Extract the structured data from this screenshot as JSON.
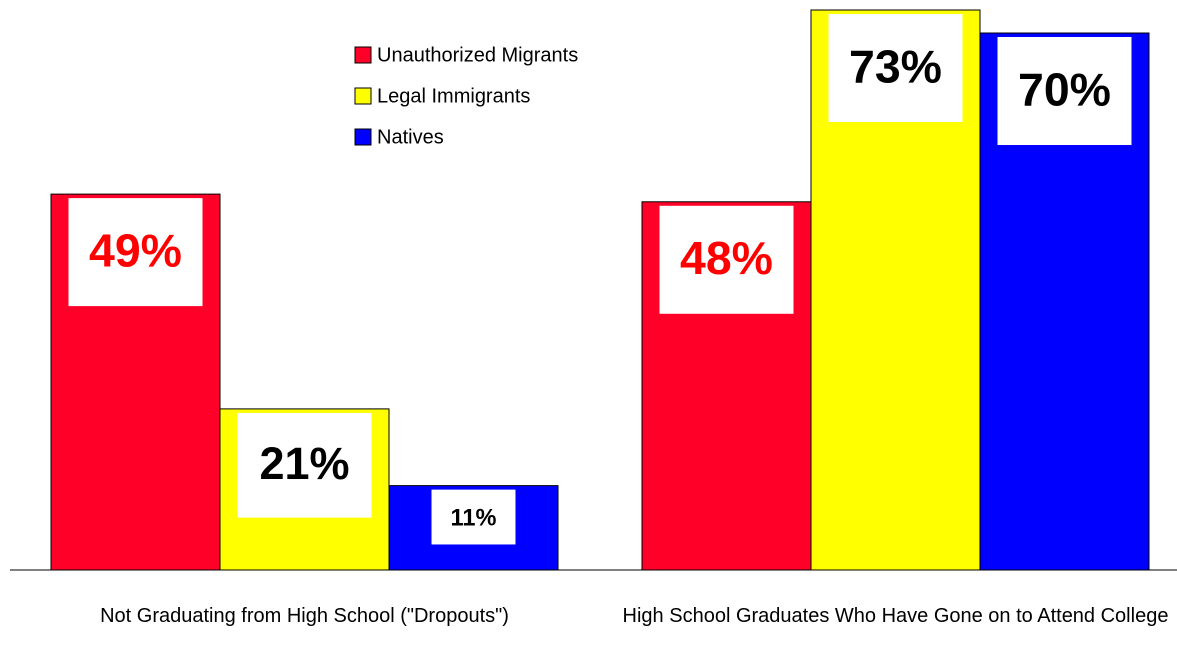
{
  "chart_data": {
    "type": "bar",
    "categories": [
      "Not Graduating from High School (\"Dropouts\")",
      "High School Graduates Who Have Gone on to Attend College"
    ],
    "series": [
      {
        "name": "Unauthorized Migrants",
        "color": "#ff0028",
        "label_color": "#ff0000",
        "values": [
          49,
          48
        ],
        "value_labels": [
          "49%",
          "48%"
        ]
      },
      {
        "name": "Legal Immigrants",
        "color": "#ffff00",
        "label_color": "#000000",
        "values": [
          21,
          73
        ],
        "value_labels": [
          "21%",
          "73%"
        ]
      },
      {
        "name": "Natives",
        "color": "#0000ff",
        "label_color": "#000000",
        "values": [
          11,
          70
        ],
        "value_labels": [
          "11%",
          "70%"
        ]
      }
    ],
    "legend": "top-center"
  }
}
